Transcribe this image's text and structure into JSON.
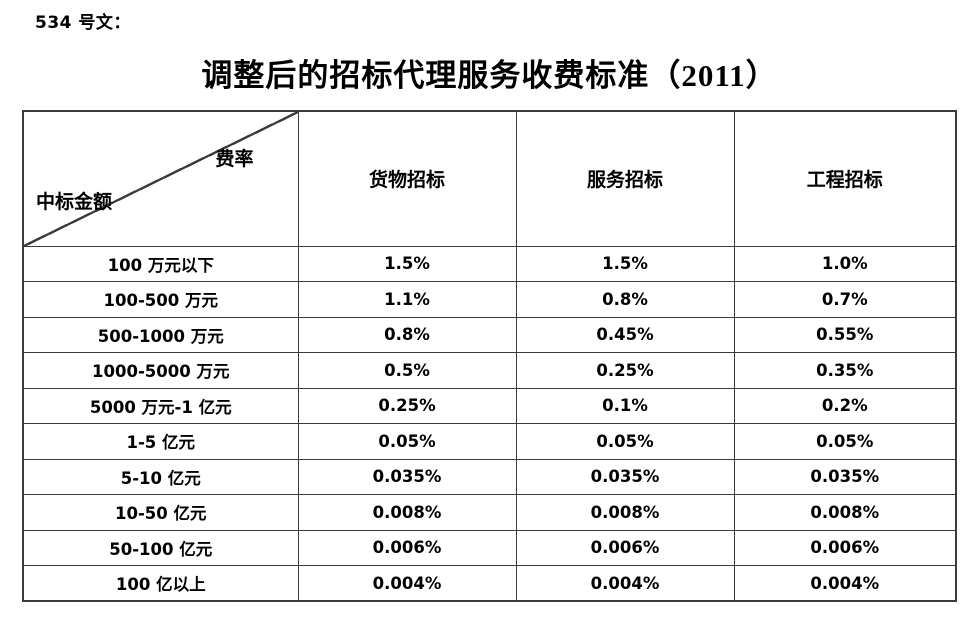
{
  "doc_label": "534 号文：",
  "title": "调整后的招标代理服务收费标准（2011）",
  "table": {
    "corner": {
      "top_right": "费率",
      "bottom_left": "中标金额"
    },
    "columns": [
      "货物招标",
      "服务招标",
      "工程招标"
    ],
    "rows": [
      {
        "amount": "100 万元以下",
        "goods": "1.5%",
        "service": "1.5%",
        "engineering": "1.0%"
      },
      {
        "amount": "100-500 万元",
        "goods": "1.1%",
        "service": "0.8%",
        "engineering": "0.7%"
      },
      {
        "amount": "500-1000 万元",
        "goods": "0.8%",
        "service": "0.45%",
        "engineering": "0.55%"
      },
      {
        "amount": "1000-5000 万元",
        "goods": "0.5%",
        "service": "0.25%",
        "engineering": "0.35%"
      },
      {
        "amount": "5000 万元-1 亿元",
        "goods": "0.25%",
        "service": "0.1%",
        "engineering": "0.2%"
      },
      {
        "amount": "1-5 亿元",
        "goods": "0.05%",
        "service": "0.05%",
        "engineering": "0.05%"
      },
      {
        "amount": "5-10 亿元",
        "goods": "0.035%",
        "service": "0.035%",
        "engineering": "0.035%"
      },
      {
        "amount": "10-50 亿元",
        "goods": "0.008%",
        "service": "0.008%",
        "engineering": "0.008%"
      },
      {
        "amount": "50-100 亿元",
        "goods": "0.006%",
        "service": "0.006%",
        "engineering": "0.006%"
      },
      {
        "amount": "100 亿以上",
        "goods": "0.004%",
        "service": "0.004%",
        "engineering": "0.004%"
      }
    ]
  },
  "colors": {
    "text": "#000000",
    "border": "#3b3b3b",
    "background": "#ffffff"
  }
}
